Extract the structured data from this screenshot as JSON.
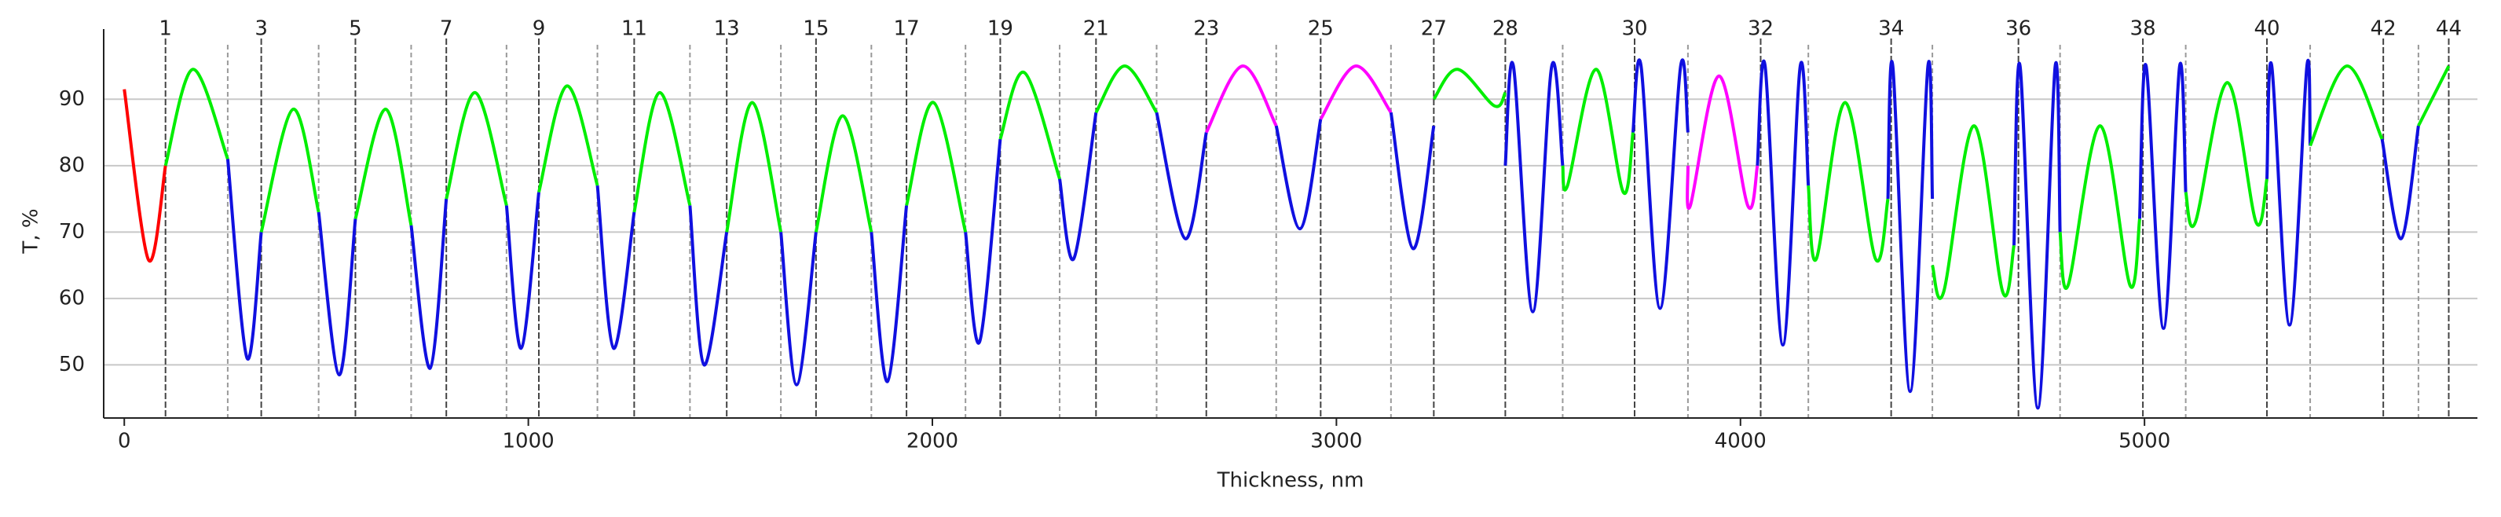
{
  "chart_data": {
    "type": "line",
    "x_label": "Thickness, nm",
    "y_label": "T, %",
    "xlim": [
      -51,
      5824
    ],
    "ylim": [
      42,
      98.2
    ],
    "xticks": [
      0,
      1000,
      2000,
      3000,
      4000,
      5000
    ],
    "yticks": [
      50,
      60,
      70,
      80,
      90
    ],
    "grid": true,
    "layer_ticks": [
      {
        "value": 102,
        "label": "1"
      },
      {
        "value": 339,
        "label": "3"
      },
      {
        "value": 572,
        "label": "5"
      },
      {
        "value": 797,
        "label": "7"
      },
      {
        "value": 1026,
        "label": "9"
      },
      {
        "value": 1262,
        "label": "11"
      },
      {
        "value": 1491,
        "label": "13"
      },
      {
        "value": 1712,
        "label": "15"
      },
      {
        "value": 1936,
        "label": "17"
      },
      {
        "value": 2168,
        "label": "19"
      },
      {
        "value": 2405,
        "label": "21"
      },
      {
        "value": 2678,
        "label": "23"
      },
      {
        "value": 2961,
        "label": "25"
      },
      {
        "value": 3241,
        "label": "27"
      },
      {
        "value": 3418,
        "label": "28"
      },
      {
        "value": 3738,
        "label": "30"
      },
      {
        "value": 4050,
        "label": "32"
      },
      {
        "value": 4373,
        "label": "34"
      },
      {
        "value": 4688,
        "label": "36"
      },
      {
        "value": 4996,
        "label": "38"
      },
      {
        "value": 5303,
        "label": "40"
      },
      {
        "value": 5591,
        "label": "42"
      },
      {
        "value": 5753,
        "label": "44"
      }
    ],
    "layer_boundaries": [
      256,
      481,
      710,
      946,
      1171,
      1400,
      1625,
      1849,
      2082,
      2315,
      2555,
      2851,
      3135,
      3560,
      3870,
      4168,
      4475,
      4791,
      5102,
      5410,
      5678
    ],
    "series": [
      {
        "color": "#ff0000",
        "x": [
          0,
          60,
          102
        ],
        "values": [
          91.5,
          65.8,
          80
        ]
      },
      {
        "color": "#00ee00",
        "x": [
          102,
          170,
          256
        ],
        "values": [
          80,
          94.5,
          81
        ]
      },
      {
        "color": "#1010e0",
        "x": [
          256,
          304,
          339
        ],
        "values": [
          81,
          51,
          70
        ]
      },
      {
        "color": "#00ee00",
        "x": [
          339,
          418,
          481
        ],
        "values": [
          70,
          88.5,
          73
        ]
      },
      {
        "color": "#1010e0",
        "x": [
          481,
          532,
          572
        ],
        "values": [
          73,
          48.5,
          72
        ]
      },
      {
        "color": "#00ee00",
        "x": [
          572,
          647,
          710
        ],
        "values": [
          72,
          88.5,
          71
        ]
      },
      {
        "color": "#1010e0",
        "x": [
          710,
          757,
          797
        ],
        "values": [
          71,
          49.5,
          75
        ]
      },
      {
        "color": "#00ee00",
        "x": [
          797,
          868,
          946
        ],
        "values": [
          75,
          91,
          74
        ]
      },
      {
        "color": "#1010e0",
        "x": [
          946,
          982,
          1026
        ],
        "values": [
          74,
          52.5,
          76
        ]
      },
      {
        "color": "#00ee00",
        "x": [
          1026,
          1096,
          1171
        ],
        "values": [
          76,
          92,
          77
        ]
      },
      {
        "color": "#1010e0",
        "x": [
          1171,
          1211,
          1262
        ],
        "values": [
          77,
          52.5,
          73
        ]
      },
      {
        "color": "#00ee00",
        "x": [
          1262,
          1325,
          1400
        ],
        "values": [
          73,
          91,
          74
        ]
      },
      {
        "color": "#1010e0",
        "x": [
          1400,
          1435,
          1491
        ],
        "values": [
          74,
          50,
          70
        ]
      },
      {
        "color": "#00ee00",
        "x": [
          1491,
          1554,
          1625
        ],
        "values": [
          70,
          89.5,
          70
        ]
      },
      {
        "color": "#1010e0",
        "x": [
          1625,
          1664,
          1712
        ],
        "values": [
          70,
          47,
          70
        ]
      },
      {
        "color": "#00ee00",
        "x": [
          1712,
          1778,
          1849
        ],
        "values": [
          70,
          87.5,
          70
        ]
      },
      {
        "color": "#1010e0",
        "x": [
          1849,
          1889,
          1936
        ],
        "values": [
          70,
          47.5,
          74
        ]
      },
      {
        "color": "#00ee00",
        "x": [
          1936,
          2003,
          2082
        ],
        "values": [
          74,
          89.5,
          70
        ]
      },
      {
        "color": "#1010e0",
        "x": [
          2082,
          2117,
          2168
        ],
        "values": [
          70,
          53.5,
          84
        ]
      },
      {
        "color": "#00ee00",
        "x": [
          2168,
          2228,
          2315
        ],
        "values": [
          84,
          94,
          78
        ]
      },
      {
        "color": "#1010e0",
        "x": [
          2315,
          2350,
          2405
        ],
        "values": [
          78,
          66,
          88
        ]
      },
      {
        "color": "#00ee00",
        "x": [
          2405,
          2476,
          2555
        ],
        "values": [
          88,
          95,
          88
        ]
      },
      {
        "color": "#1010e0",
        "x": [
          2555,
          2626,
          2678
        ],
        "values": [
          88,
          69,
          85
        ]
      },
      {
        "color": "#ff00ff",
        "x": [
          2678,
          2768,
          2851
        ],
        "values": [
          85,
          95,
          86
        ]
      },
      {
        "color": "#1010e0",
        "x": [
          2851,
          2910,
          2961
        ],
        "values": [
          86,
          70.5,
          87
        ]
      },
      {
        "color": "#ff00ff",
        "x": [
          2961,
          3048,
          3135
        ],
        "values": [
          87,
          95,
          88
        ]
      },
      {
        "color": "#1010e0",
        "x": [
          3135,
          3190,
          3241
        ],
        "values": [
          88,
          67.5,
          86
        ]
      },
      {
        "color": "#00ee00",
        "x": [
          3241,
          3300,
          3391,
          3418
        ],
        "values": [
          90,
          94.5,
          89,
          91
        ]
      },
      {
        "color": "#1010e0",
        "x": [
          3418,
          3438,
          3486,
          3533,
          3560
        ],
        "values": [
          80,
          95,
          58,
          95,
          80
        ]
      },
      {
        "color": "#00ee00",
        "x": [
          3560,
          3572,
          3643,
          3710,
          3734
        ],
        "values": [
          80,
          77,
          94.5,
          76,
          85
        ]
      },
      {
        "color": "#1010e0",
        "x": [
          3734,
          3754,
          3801,
          3852,
          3870
        ],
        "values": [
          85,
          95,
          58.5,
          95,
          85
        ]
      },
      {
        "color": "#ff00ff",
        "x": [
          3870,
          3876,
          3947,
          4018,
          4042
        ],
        "values": [
          80,
          74,
          93.5,
          74,
          80
        ]
      },
      {
        "color": "#1010e0",
        "x": [
          4042,
          4061,
          4105,
          4148,
          4168
        ],
        "values": [
          80,
          95,
          53,
          95,
          77
        ]
      },
      {
        "color": "#00ee00",
        "x": [
          4168,
          4188,
          4259,
          4334,
          4365
        ],
        "values": [
          77,
          66,
          89.5,
          66,
          75
        ]
      },
      {
        "color": "#1010e0",
        "x": [
          4365,
          4377,
          4420,
          4464,
          4475
        ],
        "values": [
          75,
          95,
          46,
          95,
          75
        ]
      },
      {
        "color": "#00ee00",
        "x": [
          4475,
          4503,
          4578,
          4649,
          4677
        ],
        "values": [
          65,
          61,
          86,
          61,
          68
        ]
      },
      {
        "color": "#1010e0",
        "x": [
          4677,
          4692,
          4736,
          4779,
          4791
        ],
        "values": [
          68,
          95,
          43.5,
          95,
          70
        ]
      },
      {
        "color": "#00ee00",
        "x": [
          4791,
          4811,
          4890,
          4964,
          4988
        ],
        "values": [
          70,
          62,
          86,
          62,
          72
        ]
      },
      {
        "color": "#1010e0",
        "x": [
          4988,
          5004,
          5047,
          5087,
          5102
        ],
        "values": [
          72,
          95,
          55.5,
          95,
          76
        ]
      },
      {
        "color": "#00ee00",
        "x": [
          5102,
          5126,
          5205,
          5276,
          5303
        ],
        "values": [
          76,
          71.5,
          92.5,
          71.5,
          78
        ]
      },
      {
        "color": "#1010e0",
        "x": [
          5303,
          5315,
          5359,
          5402,
          5410
        ],
        "values": [
          78,
          95,
          56,
          95,
          83
        ]
      },
      {
        "color": "#00ee00",
        "x": [
          5410,
          5501,
          5588
        ],
        "values": [
          83,
          95,
          84
        ]
      },
      {
        "color": "#1010e0",
        "x": [
          5588,
          5635,
          5678
        ],
        "values": [
          84,
          69,
          86
        ]
      },
      {
        "color": "#00ee00",
        "x": [
          5678,
          5753
        ],
        "values": [
          86,
          95
        ]
      }
    ]
  }
}
